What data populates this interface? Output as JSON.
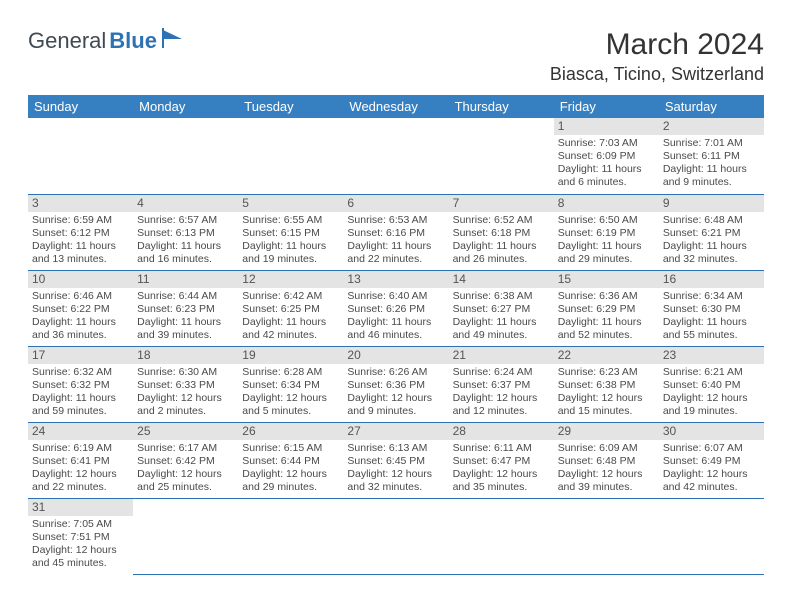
{
  "logo": {
    "text1": "General",
    "text2": "Blue"
  },
  "title": "March 2024",
  "location": "Biasca, Ticino, Switzerland",
  "colors": {
    "header_bg": "#3680c2",
    "header_text": "#ffffff",
    "daynum_bg": "#e4e4e4",
    "rule": "#2e72b4",
    "text": "#4a4a4a"
  },
  "day_headers": [
    "Sunday",
    "Monday",
    "Tuesday",
    "Wednesday",
    "Thursday",
    "Friday",
    "Saturday"
  ],
  "weeks": [
    [
      null,
      null,
      null,
      null,
      null,
      {
        "n": "1",
        "sr": "7:03 AM",
        "ss": "6:09 PM",
        "dl": "11 hours and 6 minutes."
      },
      {
        "n": "2",
        "sr": "7:01 AM",
        "ss": "6:11 PM",
        "dl": "11 hours and 9 minutes."
      }
    ],
    [
      {
        "n": "3",
        "sr": "6:59 AM",
        "ss": "6:12 PM",
        "dl": "11 hours and 13 minutes."
      },
      {
        "n": "4",
        "sr": "6:57 AM",
        "ss": "6:13 PM",
        "dl": "11 hours and 16 minutes."
      },
      {
        "n": "5",
        "sr": "6:55 AM",
        "ss": "6:15 PM",
        "dl": "11 hours and 19 minutes."
      },
      {
        "n": "6",
        "sr": "6:53 AM",
        "ss": "6:16 PM",
        "dl": "11 hours and 22 minutes."
      },
      {
        "n": "7",
        "sr": "6:52 AM",
        "ss": "6:18 PM",
        "dl": "11 hours and 26 minutes."
      },
      {
        "n": "8",
        "sr": "6:50 AM",
        "ss": "6:19 PM",
        "dl": "11 hours and 29 minutes."
      },
      {
        "n": "9",
        "sr": "6:48 AM",
        "ss": "6:21 PM",
        "dl": "11 hours and 32 minutes."
      }
    ],
    [
      {
        "n": "10",
        "sr": "6:46 AM",
        "ss": "6:22 PM",
        "dl": "11 hours and 36 minutes."
      },
      {
        "n": "11",
        "sr": "6:44 AM",
        "ss": "6:23 PM",
        "dl": "11 hours and 39 minutes."
      },
      {
        "n": "12",
        "sr": "6:42 AM",
        "ss": "6:25 PM",
        "dl": "11 hours and 42 minutes."
      },
      {
        "n": "13",
        "sr": "6:40 AM",
        "ss": "6:26 PM",
        "dl": "11 hours and 46 minutes."
      },
      {
        "n": "14",
        "sr": "6:38 AM",
        "ss": "6:27 PM",
        "dl": "11 hours and 49 minutes."
      },
      {
        "n": "15",
        "sr": "6:36 AM",
        "ss": "6:29 PM",
        "dl": "11 hours and 52 minutes."
      },
      {
        "n": "16",
        "sr": "6:34 AM",
        "ss": "6:30 PM",
        "dl": "11 hours and 55 minutes."
      }
    ],
    [
      {
        "n": "17",
        "sr": "6:32 AM",
        "ss": "6:32 PM",
        "dl": "11 hours and 59 minutes."
      },
      {
        "n": "18",
        "sr": "6:30 AM",
        "ss": "6:33 PM",
        "dl": "12 hours and 2 minutes."
      },
      {
        "n": "19",
        "sr": "6:28 AM",
        "ss": "6:34 PM",
        "dl": "12 hours and 5 minutes."
      },
      {
        "n": "20",
        "sr": "6:26 AM",
        "ss": "6:36 PM",
        "dl": "12 hours and 9 minutes."
      },
      {
        "n": "21",
        "sr": "6:24 AM",
        "ss": "6:37 PM",
        "dl": "12 hours and 12 minutes."
      },
      {
        "n": "22",
        "sr": "6:23 AM",
        "ss": "6:38 PM",
        "dl": "12 hours and 15 minutes."
      },
      {
        "n": "23",
        "sr": "6:21 AM",
        "ss": "6:40 PM",
        "dl": "12 hours and 19 minutes."
      }
    ],
    [
      {
        "n": "24",
        "sr": "6:19 AM",
        "ss": "6:41 PM",
        "dl": "12 hours and 22 minutes."
      },
      {
        "n": "25",
        "sr": "6:17 AM",
        "ss": "6:42 PM",
        "dl": "12 hours and 25 minutes."
      },
      {
        "n": "26",
        "sr": "6:15 AM",
        "ss": "6:44 PM",
        "dl": "12 hours and 29 minutes."
      },
      {
        "n": "27",
        "sr": "6:13 AM",
        "ss": "6:45 PM",
        "dl": "12 hours and 32 minutes."
      },
      {
        "n": "28",
        "sr": "6:11 AM",
        "ss": "6:47 PM",
        "dl": "12 hours and 35 minutes."
      },
      {
        "n": "29",
        "sr": "6:09 AM",
        "ss": "6:48 PM",
        "dl": "12 hours and 39 minutes."
      },
      {
        "n": "30",
        "sr": "6:07 AM",
        "ss": "6:49 PM",
        "dl": "12 hours and 42 minutes."
      }
    ],
    [
      {
        "n": "31",
        "sr": "7:05 AM",
        "ss": "7:51 PM",
        "dl": "12 hours and 45 minutes."
      },
      null,
      null,
      null,
      null,
      null,
      null
    ]
  ],
  "labels": {
    "sunrise": "Sunrise:",
    "sunset": "Sunset:",
    "daylight": "Daylight:"
  }
}
